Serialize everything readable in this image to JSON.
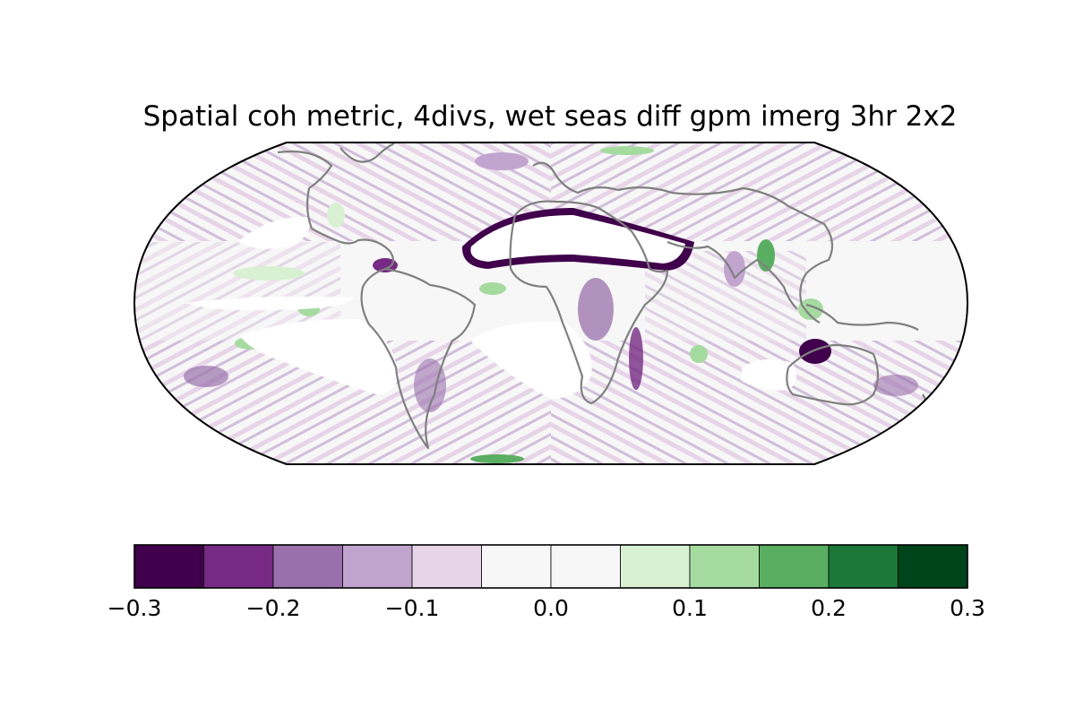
{
  "title": "Spatial coh metric, 4divs, wet seas diff gpm imerg 3hr 2x2",
  "colorbar": {
    "min": -0.3,
    "max": 0.3,
    "step": 0.05,
    "colors": [
      "#40004b",
      "#762a83",
      "#9970ab",
      "#c2a5cf",
      "#e7d4e8",
      "#f7f7f7",
      "#f7f7f7",
      "#d9f0d3",
      "#a6dba0",
      "#5aae61",
      "#1b7837",
      "#00441b"
    ],
    "tick_values": [
      -0.3,
      -0.2,
      -0.1,
      0.0,
      0.1,
      0.2,
      0.3
    ],
    "tick_labels": [
      "−0.3",
      "−0.2",
      "−0.1",
      "0.0",
      "0.1",
      "0.2",
      "0.3"
    ]
  },
  "map": {
    "projection": "robinson",
    "ocean_fill": "#f7f7f7",
    "coastline_color": "#808080",
    "masked_color": "#ffffff"
  }
}
